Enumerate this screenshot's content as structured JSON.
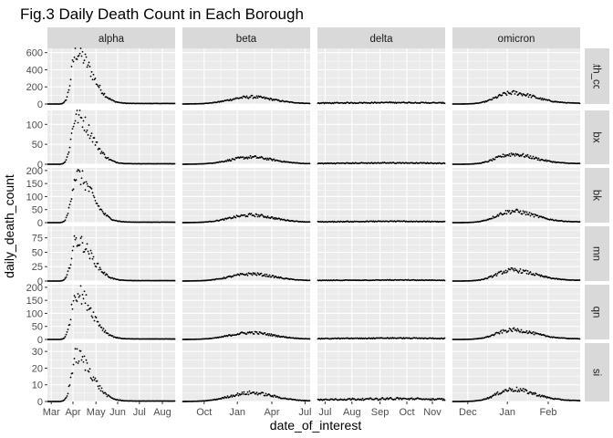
{
  "chart_data": {
    "type": "scatter",
    "title": "Fig.3 Daily Death Count in Each Borough",
    "xlabel": "date_of_interest",
    "ylabel": "daily_death_count",
    "grid": true,
    "facet_columns": [
      {
        "name": "alpha",
        "x_ticks": [
          "Mar",
          "Apr",
          "May",
          "Jun",
          "Jul",
          "Aug"
        ]
      },
      {
        "name": "beta",
        "x_ticks": [
          "Oct",
          "Jan",
          "Apr",
          "Jul"
        ]
      },
      {
        "name": "delta",
        "x_ticks": [
          "Jul",
          "Aug",
          "Sep",
          "Oct",
          "Nov"
        ]
      },
      {
        "name": "omicron",
        "x_ticks": [
          "Dec",
          "Jan",
          "Feb"
        ]
      }
    ],
    "facet_rows": [
      {
        "name": "death_count",
        "ylim": [
          0,
          650
        ],
        "y_ticks": [
          0,
          200,
          400,
          600
        ],
        "y_tick_labels": [
          "0",
          "200",
          "400",
          "600"
        ],
        "peaks": [
          {
            "v": 600
          },
          {
            "v": 80
          },
          {
            "v": 10
          },
          {
            "v": 125
          }
        ]
      },
      {
        "name": "bx",
        "ylim": [
          0,
          135
        ],
        "y_ticks": [
          0,
          50,
          100
        ],
        "y_tick_labels": [
          "0",
          "50",
          "100"
        ],
        "peaks": [
          {
            "v": 120
          },
          {
            "v": 17
          },
          {
            "v": 2
          },
          {
            "v": 24
          }
        ]
      },
      {
        "name": "bk",
        "ylim": [
          0,
          210
        ],
        "y_ticks": [
          0,
          50,
          100,
          150,
          200
        ],
        "y_tick_labels": [
          "0",
          "50",
          "100",
          "150",
          "200"
        ],
        "peaks": [
          {
            "v": 180
          },
          {
            "v": 28
          },
          {
            "v": 3
          },
          {
            "v": 42
          }
        ]
      },
      {
        "name": "mn",
        "ylim": [
          0,
          95
        ],
        "y_ticks": [
          0,
          25,
          50,
          75
        ],
        "y_tick_labels": [
          "0",
          "25",
          "50",
          "75"
        ],
        "peaks": [
          {
            "v": 70
          },
          {
            "v": 12
          },
          {
            "v": 1
          },
          {
            "v": 18
          }
        ]
      },
      {
        "name": "qn",
        "ylim": [
          0,
          210
        ],
        "y_ticks": [
          0,
          50,
          100,
          150,
          200
        ],
        "y_tick_labels": [
          "0",
          "50",
          "100",
          "150",
          "200"
        ],
        "peaks": [
          {
            "v": 180
          },
          {
            "v": 25
          },
          {
            "v": 3
          },
          {
            "v": 35
          }
        ]
      },
      {
        "name": "si",
        "ylim": [
          0,
          35
        ],
        "y_ticks": [
          0,
          10,
          20,
          30
        ],
        "y_tick_labels": [
          "0",
          "10",
          "20",
          "30"
        ],
        "peaks": [
          {
            "v": 27
          },
          {
            "v": 5
          },
          {
            "v": 1
          },
          {
            "v": 7
          }
        ]
      }
    ]
  }
}
